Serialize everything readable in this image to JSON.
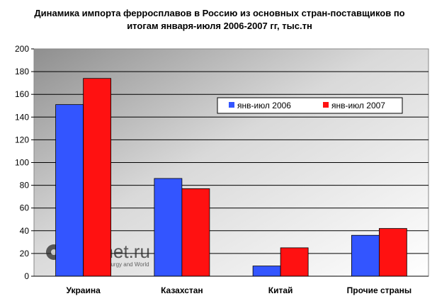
{
  "chart_data": {
    "type": "bar",
    "title": "Динамика импорта ферросплавов в Россию из основных стран-поставщиков по итогам января-июля 2006-2007 гг, тыс.тн",
    "categories": [
      "Украина",
      "Казахстан",
      "Китай",
      "Прочие страны"
    ],
    "series": [
      {
        "name": "янв-июл 2006",
        "color": "#3355ff",
        "values": [
          151,
          86,
          9,
          36
        ]
      },
      {
        "name": "янв-июл 2007",
        "color": "#ff1111",
        "values": [
          174,
          77,
          25,
          42
        ]
      }
    ],
    "yticks": [
      "0",
      "20",
      "40",
      "60",
      "80",
      "100",
      "120",
      "140",
      "160",
      "180",
      "200"
    ],
    "ylim": [
      0,
      200
    ],
    "grid": true,
    "legend_position": "top-right"
  },
  "watermark": {
    "brand": "Rusmet.ru",
    "tagline": "Russian Metallurgy and World"
  }
}
